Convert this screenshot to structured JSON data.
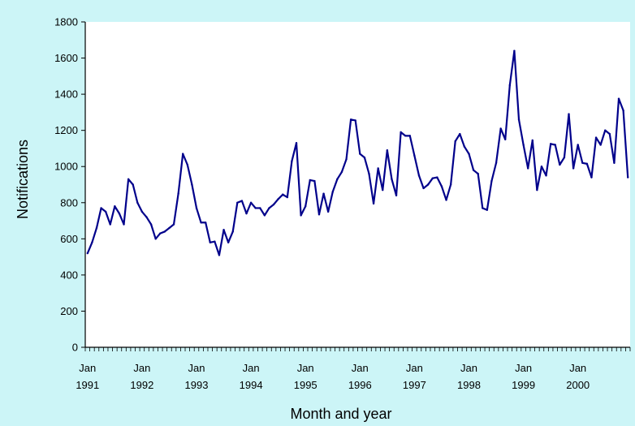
{
  "chart_data": {
    "type": "line",
    "title": "",
    "xlabel": "Month and year",
    "ylabel": "Notifications",
    "ylim": [
      0,
      1800
    ],
    "yticks": [
      0,
      200,
      400,
      600,
      800,
      1000,
      1200,
      1400,
      1600,
      1800
    ],
    "x_start": "Jan 1991",
    "x_tick_labels": [
      {
        "month": "Jan",
        "year": "1991"
      },
      {
        "month": "Jan",
        "year": "1992"
      },
      {
        "month": "Jan",
        "year": "1993"
      },
      {
        "month": "Jan",
        "year": "1994"
      },
      {
        "month": "Jan",
        "year": "1995"
      },
      {
        "month": "Jan",
        "year": "1996"
      },
      {
        "month": "Jan",
        "year": "1997"
      },
      {
        "month": "Jan",
        "year": "1998"
      },
      {
        "month": "Jan",
        "year": "1999"
      },
      {
        "month": "Jan",
        "year": "2000"
      }
    ],
    "grid": false,
    "legend": "none",
    "colors": {
      "line": "#00008b",
      "plot_bg": "#ffffff",
      "page_bg": "#ccf5f7"
    },
    "series": [
      {
        "values": [
          520,
          580,
          660,
          770,
          750,
          680,
          780,
          740,
          680,
          930,
          900,
          800,
          750,
          720,
          680,
          600,
          630,
          640,
          660,
          680,
          850,
          1070,
          1010,
          900,
          770,
          690,
          690,
          580,
          585,
          510,
          650,
          580,
          640,
          800,
          810,
          740,
          800,
          770,
          770,
          730,
          770,
          790,
          820,
          845,
          830,
          1030,
          1130,
          730,
          780,
          925,
          920,
          735,
          850,
          750,
          860,
          930,
          970,
          1040,
          1260,
          1255,
          1070,
          1050,
          960,
          795,
          990,
          870,
          1090,
          930,
          840,
          1190,
          1170,
          1170,
          1060,
          950,
          880,
          900,
          935,
          940,
          890,
          815,
          900,
          1140,
          1180,
          1110,
          1070,
          980,
          960,
          770,
          760,
          920,
          1020,
          1210,
          1150,
          1450,
          1640,
          1260,
          1120,
          990,
          1145,
          870,
          1000,
          950,
          1125,
          1120,
          1010,
          1050,
          1290,
          990,
          1120,
          1020,
          1015,
          940,
          1160,
          1120,
          1200,
          1180,
          1020,
          1375,
          1310,
          940
        ]
      }
    ]
  }
}
